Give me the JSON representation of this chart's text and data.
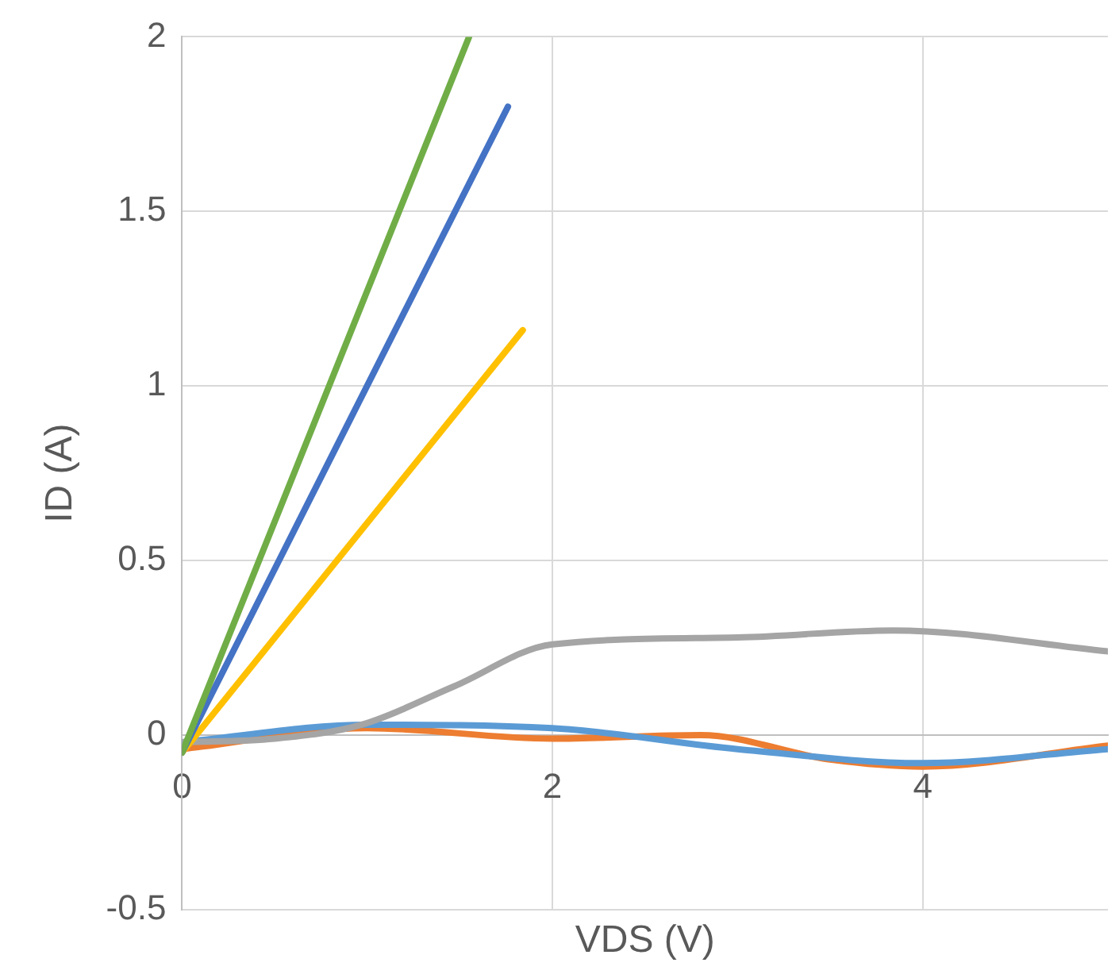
{
  "chart_data": {
    "type": "line",
    "xlabel": "VDS (V)",
    "ylabel": "ID (A)",
    "xlim": [
      0,
      5
    ],
    "xticks": [
      0,
      2,
      4
    ],
    "ylim": [
      -0.5,
      2
    ],
    "yticks": [
      -0.5,
      0,
      0.5,
      1,
      1.5,
      2
    ],
    "grid": true,
    "legend": false,
    "series": [
      {
        "color": "#70ad47",
        "x": [
          0,
          1.55
        ],
        "values": [
          -0.05,
          2.0
        ]
      },
      {
        "color": "#4472c4",
        "x": [
          0,
          1.76
        ],
        "values": [
          -0.05,
          1.8
        ]
      },
      {
        "color": "#ffc000",
        "x": [
          0,
          1.84
        ],
        "values": [
          -0.05,
          1.16
        ]
      },
      {
        "color": "#a5a5a5",
        "x": [
          0,
          0.5,
          0.97,
          1.47,
          2,
          3,
          3.84,
          5
        ],
        "values": [
          -0.02,
          -0.01,
          0.03,
          0.14,
          0.26,
          0.28,
          0.3,
          0.24
        ]
      },
      {
        "color": "#5b9bd5",
        "x": [
          0,
          1,
          2,
          3,
          4,
          5
        ],
        "values": [
          -0.02,
          0.03,
          0.02,
          -0.04,
          -0.08,
          -0.04
        ]
      },
      {
        "color": "#ed7d31",
        "x": [
          0,
          1,
          2,
          2.8,
          3.5,
          4,
          5
        ],
        "values": [
          -0.04,
          0.02,
          -0.01,
          0.0,
          -0.07,
          -0.09,
          -0.03
        ]
      }
    ]
  }
}
